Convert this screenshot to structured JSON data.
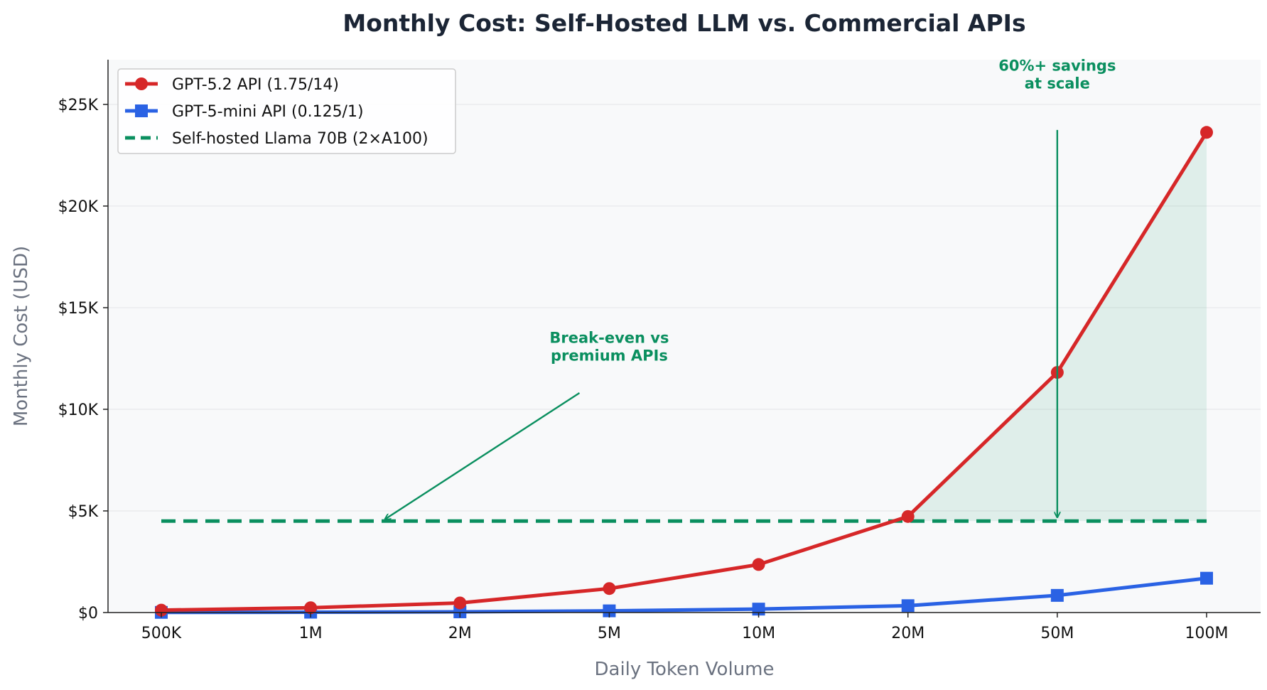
{
  "chart_data": {
    "type": "line",
    "title": "Monthly Cost: Self-Hosted LLM vs. Commercial APIs",
    "xlabel": "Daily Token Volume",
    "ylabel": "Monthly Cost (USD)",
    "categories": [
      "500K",
      "1M",
      "2M",
      "5M",
      "10M",
      "20M",
      "50M",
      "100M"
    ],
    "ylim": [
      0,
      27200
    ],
    "yticks": [
      {
        "value": 0,
        "label": "$0"
      },
      {
        "value": 5000,
        "label": "$5K"
      },
      {
        "value": 10000,
        "label": "$10K"
      },
      {
        "value": 15000,
        "label": "$15K"
      },
      {
        "value": 20000,
        "label": "$20K"
      },
      {
        "value": 25000,
        "label": "$25K"
      }
    ],
    "grid": true,
    "legend_position": "top-left",
    "series": [
      {
        "name": "GPT-5.2 API (1.75/14)",
        "color": "#d62728",
        "marker": "circle",
        "style": "solid",
        "values": [
          118,
          236,
          473,
          1181,
          2363,
          4725,
          11813,
          23625
        ]
      },
      {
        "name": "GPT-5-mini API (0.125/1)",
        "color": "#2a62e4",
        "marker": "square",
        "style": "solid",
        "values": [
          8,
          17,
          34,
          84,
          169,
          338,
          844,
          1688
        ]
      },
      {
        "name": "Self-hosted Llama 70B (2×A100)",
        "color": "#0a8f5f",
        "marker": "none",
        "style": "dashed",
        "values": [
          4500,
          4500,
          4500,
          4500,
          4500,
          4500,
          4500,
          4500
        ]
      }
    ],
    "shaded_region": {
      "between": [
        "GPT-5.2 API (1.75/14)",
        "Self-hosted Llama 70B (2×A100)"
      ],
      "from_category": "20M",
      "to_category": "100M",
      "color": "#0a8f5f"
    },
    "annotations": [
      {
        "lines": [
          "Break-even vs",
          "premium APIs"
        ],
        "color": "#0a8f5f",
        "text_x": 3,
        "text_y": 12200,
        "arrow_to_x": 1.5,
        "arrow_to_y": 4600
      },
      {
        "lines": [
          "60%+ savings",
          "at scale"
        ],
        "color": "#0a8f5f",
        "text_x": 6,
        "text_y": 25000,
        "arrow_to_x": 6,
        "arrow_to_y": 4700
      }
    ]
  }
}
